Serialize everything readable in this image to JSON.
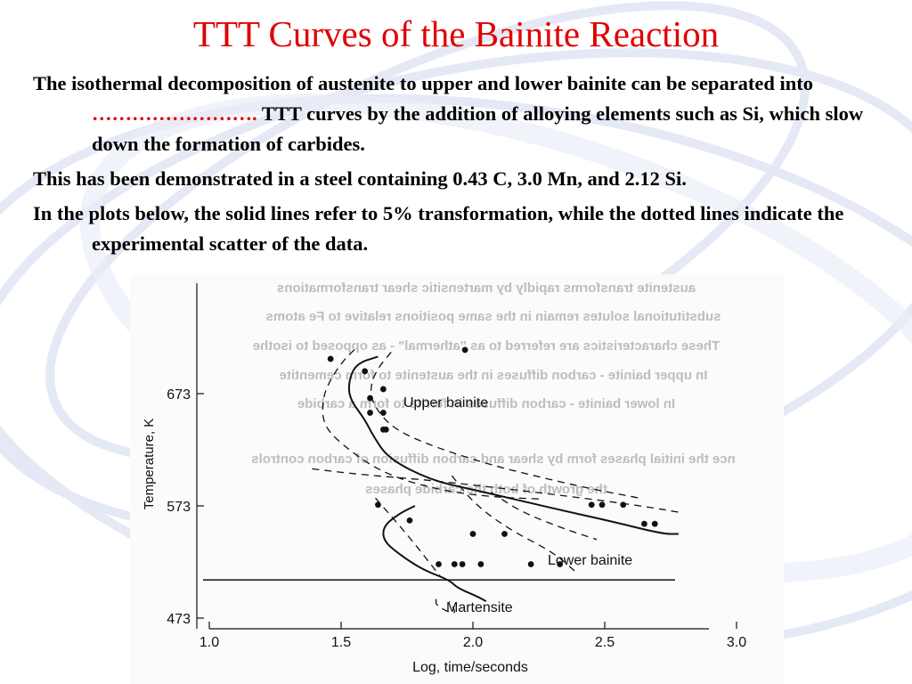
{
  "slide": {
    "title": "TTT Curves of the Bainite Reaction",
    "bullets": [
      {
        "pre": "The isothermal decomposition of austenite to upper and lower bainite can be separated into ",
        "blank": "…………………….",
        "post": " TTT curves by the addition of alloying elements such as Si, which slow down the formation of carbides."
      },
      {
        "pre": "This has been demonstrated in a steel containing 0.43 C, 3.0 Mn, and 2.12 Si.",
        "blank": "",
        "post": ""
      },
      {
        "pre": "In the plots below, the solid lines refer to 5% transformation, while the dotted lines indicate the experimental scatter of the data.",
        "blank": "",
        "post": ""
      }
    ]
  },
  "figure": {
    "ghost_lines": [
      "austenite transforms rapidly by martensitic shear transformations",
      "substitutional solutes remain in the same positions relative to Fe atoms",
      "These characteristics are referred to as \"athermal\" - as opposed to isothe",
      "In upper bainite - carbon diffuses in the austenite to form cementite",
      "In lower bainite - carbon diffuses in ferrite to form a carbide",
      "nce the initial phases form by shear and carbon diffusion of carbon controls",
      "the growth of both the carbide phases"
    ]
  },
  "chart_data": {
    "type": "scatter",
    "title": "",
    "xlabel": "Log, time/seconds",
    "ylabel": "Temperature, K",
    "xlim": [
      1.0,
      3.05
    ],
    "ylim": [
      473,
      725
    ],
    "x_ticks": [
      1.0,
      1.5,
      2.0,
      2.5,
      3.0
    ],
    "x_tick_labels": [
      "1.0",
      "1.5",
      "2.0",
      "2.5",
      "3.0"
    ],
    "y_ticks": [
      473,
      573,
      673
    ],
    "y_tick_labels": [
      "473",
      "573",
      "673"
    ],
    "grid": false,
    "annotations": [
      "Upper bainite",
      "Lower bainite",
      "Martensite"
    ],
    "martensite_start_K": 507,
    "series": [
      {
        "values_x": [
          1.64,
          1.56,
          1.53,
          1.53,
          1.59,
          1.62,
          1.68,
          1.84,
          1.99,
          2.12,
          2.3,
          2.53,
          2.72,
          2.78
        ],
        "values_y": [
          706,
          700,
          686,
          669,
          650,
          636,
          615,
          596,
          588,
          581,
          571,
          559,
          548,
          548
        ],
        "style": "solid"
      },
      {
        "values_x": [
          1.78,
          1.72,
          1.66,
          1.66,
          1.72,
          1.81,
          1.91,
          1.94,
          2.01,
          2.05
        ],
        "values_y": [
          573,
          566,
          555,
          542,
          530,
          516,
          507,
          500,
          493,
          488
        ],
        "style": "solid"
      },
      {
        "values_x": [
          1.55,
          1.51,
          1.46,
          1.43,
          1.43,
          1.5,
          1.65,
          1.85,
          2.06,
          2.27
        ],
        "values_y": [
          712,
          703,
          686,
          669,
          646,
          628,
          603,
          588,
          581,
          579
        ],
        "style": "dashed"
      },
      {
        "values_x": [
          1.69,
          1.64,
          1.61,
          1.62,
          1.7,
          1.86,
          2.06,
          2.23,
          2.43,
          2.63
        ],
        "values_y": [
          710,
          696,
          680,
          663,
          641,
          625,
          610,
          600,
          589,
          580
        ],
        "style": "dashed"
      },
      {
        "values_x": [
          1.39,
          1.57,
          1.83,
          2.06,
          2.35,
          2.64,
          2.79
        ],
        "values_y": [
          606,
          601,
          596,
          590,
          582,
          573,
          567
        ],
        "style": "dashed"
      },
      {
        "values_x": [
          1.63,
          1.76,
          1.88
        ],
        "values_y": [
          580,
          545,
          509
        ],
        "style": "dashed"
      },
      {
        "values_x": [
          1.92,
          2.0,
          2.13,
          2.31,
          2.4
        ],
        "values_y": [
          600,
          576,
          553,
          531,
          512
        ],
        "style": "dashed"
      },
      {
        "values_x": [
          2.07,
          2.18,
          2.34,
          2.47
        ],
        "values_y": [
          585,
          568,
          553,
          543
        ],
        "style": "dashed"
      },
      {
        "values_x": [
          1.86,
          1.86,
          1.93,
          1.93,
          1.91
        ],
        "values_y": [
          490,
          484,
          476,
          481,
          488
        ],
        "style": "dashed"
      },
      {
        "values_x": [
          1.46,
          1.59,
          1.66,
          1.61,
          1.61,
          1.66,
          1.67,
          1.66,
          1.97,
          2.45,
          2.49,
          2.57,
          2.65,
          2.69
        ],
        "values_y": [
          704,
          693,
          677,
          669,
          656,
          656,
          641,
          641,
          712,
          574,
          574,
          574,
          557,
          557
        ],
        "style": "points"
      },
      {
        "values_x": [
          1.64,
          1.76,
          1.87,
          1.93,
          1.96,
          2.0,
          2.12,
          2.03,
          2.22,
          2.33
        ],
        "values_y": [
          574,
          560,
          521,
          521,
          521,
          548,
          548,
          521,
          521,
          521
        ],
        "style": "points"
      }
    ]
  }
}
